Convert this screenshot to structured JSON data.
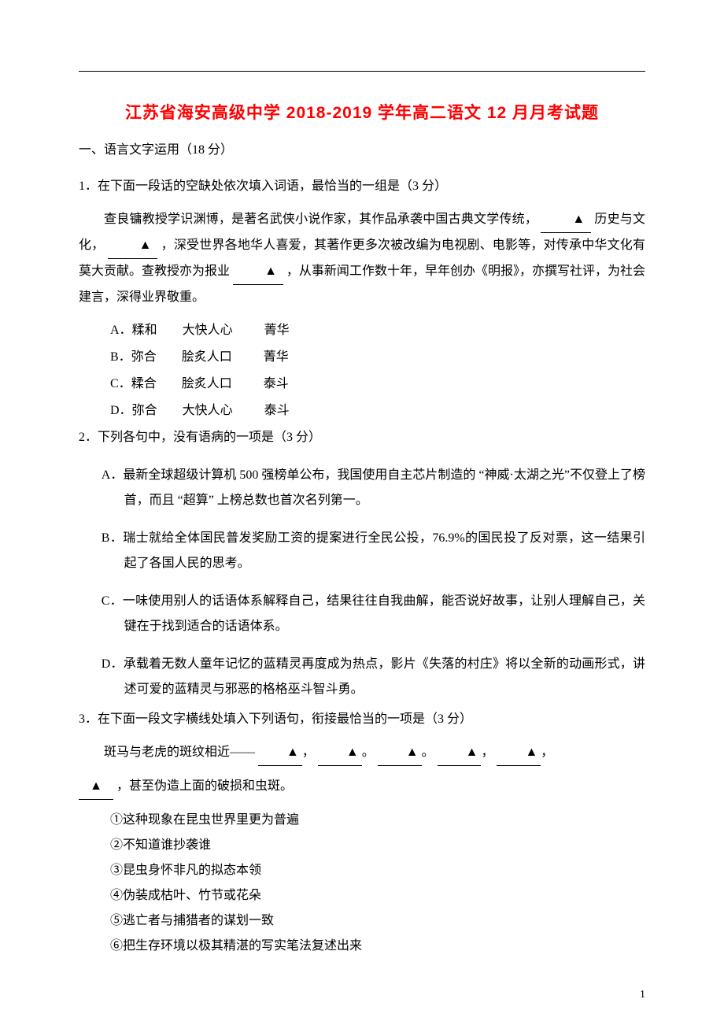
{
  "title": "江苏省海安高级中学 2018-2019 学年高二语文 12 月月考试题",
  "colors": {
    "title_color": "#ff0000",
    "text_color": "#000000",
    "background": "#ffffff"
  },
  "section1": {
    "heading": "一、语言文字运用（18 分）"
  },
  "q1": {
    "stem": "1．在下面一段话的空缺处依次填入词语，最恰当的一组是（3 分）",
    "passage_pre": "查良镛教授学识渊博，是著名武侠小说作家，其作品承袭中国古典文学传统，",
    "passage_mid1": "历史与文化，",
    "passage_mid2": "，深受世界各地华人喜爱，其著作更多次被改编为电视剧、电影等，对传承中华文化有莫大贡献。查教授亦为报业",
    "passage_end": "，从事新闻工作数十年，早年创办《明报》，亦撰写社评，为社会建言，深得业界敬重。",
    "options": [
      {
        "label": "A．",
        "c1": "糅和",
        "c2": "大快人心",
        "c3": "菁华"
      },
      {
        "label": "B．",
        "c1": "弥合",
        "c2": "脍炙人口",
        "c3": "菁华"
      },
      {
        "label": "C．",
        "c1": "糅合",
        "c2": "脍炙人口",
        "c3": "泰斗"
      },
      {
        "label": "D．",
        "c1": "弥合",
        "c2": "大快人心",
        "c3": "泰斗"
      }
    ]
  },
  "q2": {
    "stem": "2．下列各句中，没有语病的一项是（3 分）",
    "options": [
      "A．最新全球超级计算机 500 强榜单公布，我国使用自主芯片制造的 “神威·太湖之光”不仅登上了榜首，而且 “超算” 上榜总数也首次名列第一。",
      "B．瑞士就给全体国民普发奖励工资的提案进行全民公投，76.9%的国民投了反对票，这一结果引起了各国人民的思考。",
      "C．一味使用别人的话语体系解释自己，结果往往自我曲解，能否说好故事，让别人理解自己，关键在于找到适合的话语体系。",
      "D．承载着无数人童年记忆的蓝精灵再度成为热点，影片《失落的村庄》将以全新的动画形式，讲述可爱的蓝精灵与邪恶的格格巫斗智斗勇。"
    ]
  },
  "q3": {
    "stem": "3．在下面一段文字横线处填入下列语句，衔接最恰当的一项是（3 分）",
    "passage_pre": "斑马与老虎的斑纹相近——",
    "passage_end": "，甚至伪造上面的破损和虫斑。",
    "items": [
      "①这种现象在昆虫世界里更为普遍",
      "②不知道谁抄袭谁",
      "③昆虫身怀非凡的拟态本领",
      "④伪装成枯叶、竹节或花朵",
      "⑤逃亡者与捕猎者的谋划一致",
      "⑥把生存环境以极其精湛的写实笔法复述出来"
    ]
  },
  "marker": "▲",
  "page_number": "1"
}
